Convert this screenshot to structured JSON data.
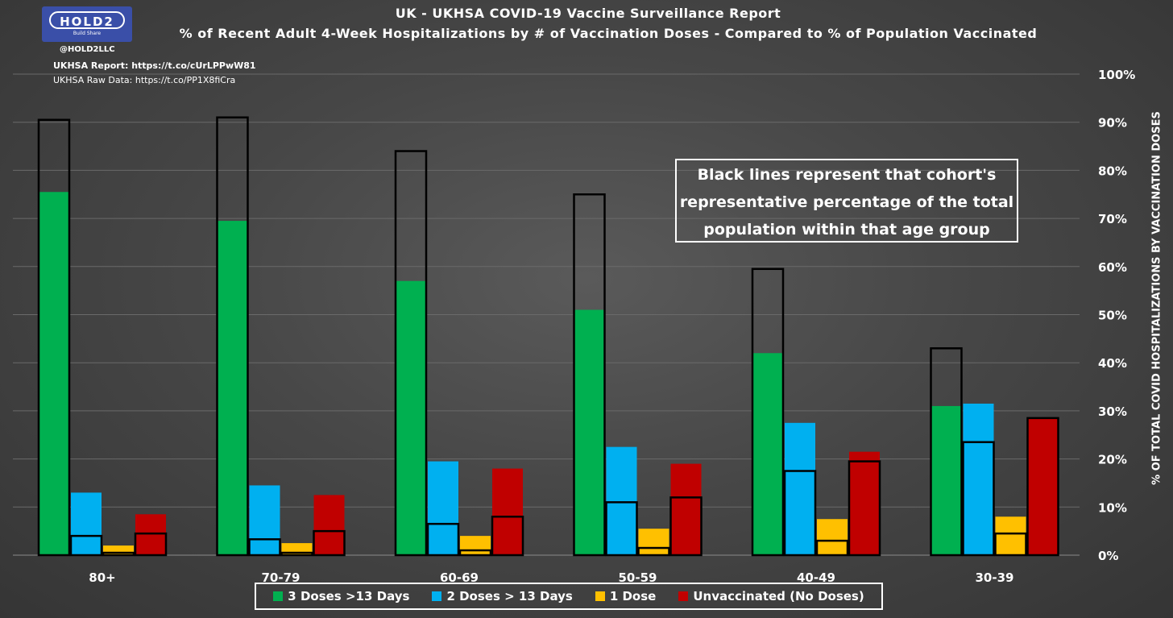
{
  "header": {
    "logo_text": "HOLD2",
    "logo_sub": "Build Share",
    "handle": "@HOLD2LLC",
    "report_link": "UKHSA Report: https://t.co/cUrLPPwW81",
    "raw_link": "UKHSA Raw Data: https://t.co/PP1X8fiCra"
  },
  "chart_data": {
    "type": "bar",
    "title": "UK - UKHSA COVID-19 Vaccine Surveillance Report",
    "subtitle": "% of Recent Adult 4-Week Hospitalizations by # of Vaccination Doses - Compared to % of Population Vaccinated",
    "ylabel": "% OF TOTAL COVID HOSPITALIZATIONS BY VACCINATION DOSES",
    "ylim": [
      0,
      100
    ],
    "yticks": [
      "0%",
      "10%",
      "20%",
      "30%",
      "40%",
      "50%",
      "60%",
      "70%",
      "80%",
      "90%",
      "100%"
    ],
    "grid": true,
    "legend_position": "bottom",
    "callout": "Black lines represent that cohort's representative percentage of the total population within that age group",
    "categories": [
      "80+",
      "70-79",
      "60-69",
      "50-59",
      "40-49",
      "30-39"
    ],
    "series": [
      {
        "name": "3 Doses >13 Days",
        "color": "#00b050",
        "hospitalizations": [
          75.5,
          69.5,
          57,
          51,
          42,
          31
        ],
        "population": [
          90.5,
          91,
          84,
          75,
          59.5,
          43
        ]
      },
      {
        "name": "2 Doses > 13 Days",
        "color": "#00b0f0",
        "hospitalizations": [
          13,
          14.5,
          19.5,
          22.5,
          27.5,
          31.5
        ],
        "population": [
          4,
          3.3,
          6.5,
          11,
          17.5,
          23.5
        ]
      },
      {
        "name": "1 Dose",
        "color": "#ffc000",
        "hospitalizations": [
          2,
          2.5,
          4,
          5.5,
          7.5,
          8
        ],
        "population": [
          0.5,
          0.5,
          1,
          1.5,
          3,
          4.5
        ]
      },
      {
        "name": "Unvaccinated (No Doses)",
        "color": "#c00000",
        "hospitalizations": [
          8.5,
          12.5,
          18,
          19,
          21.5,
          28.5
        ],
        "population": [
          4.5,
          5,
          8,
          12,
          19.5,
          28.5
        ]
      }
    ]
  }
}
